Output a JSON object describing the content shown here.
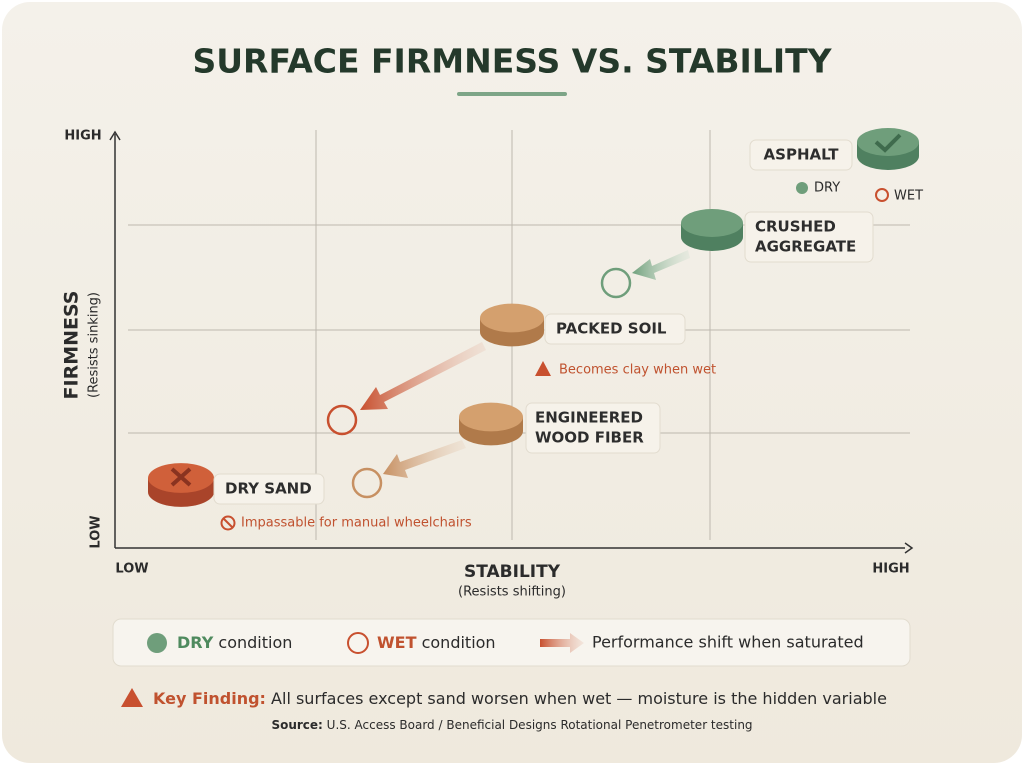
{
  "title": "SURFACE FIRMNESS VS. STABILITY",
  "y_axis": {
    "label": "FIRMNESS",
    "sublabel": "(Resists sinking)",
    "low": "LOW",
    "high": "HIGH"
  },
  "x_axis": {
    "label": "STABILITY",
    "sublabel": "(Resists shifting)",
    "low": "LOW",
    "high": "HIGH"
  },
  "nodes": [
    {
      "lines": [
        "ASPHALT"
      ]
    },
    {
      "lines": [
        "CRUSHED",
        "AGGREGATE"
      ]
    },
    {
      "lines": [
        "PACKED SOIL"
      ]
    },
    {
      "lines": [
        "ENGINEERED",
        "WOOD FIBER"
      ]
    },
    {
      "lines": [
        "DRY SAND"
      ]
    }
  ],
  "asphalt_key": {
    "dry": "DRY",
    "wet": "WET"
  },
  "notes": [
    "Becomes clay when wet",
    "Impassable for manual wheelchairs"
  ],
  "legend": [
    {
      "keyword": "DRY",
      "text": "condition"
    },
    {
      "keyword": "WET",
      "text": "condition"
    },
    {
      "text": "Performance shift when saturated"
    }
  ],
  "finding": {
    "label": "Key Finding:",
    "text": "All surfaces except sand worsen when wet — moisture is the hidden variable"
  },
  "source": {
    "label": "Source:",
    "text": "U.S. Access Board / Beneficial Designs Rotational Penetrometer testing"
  }
}
